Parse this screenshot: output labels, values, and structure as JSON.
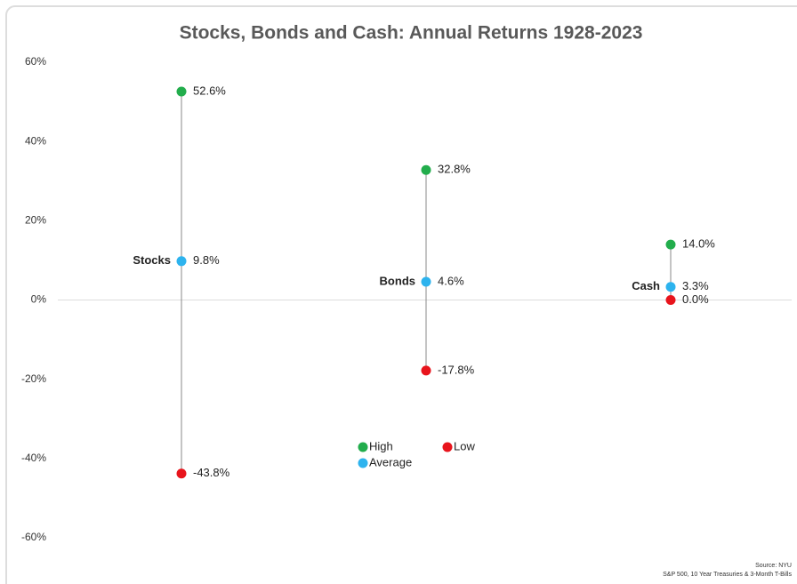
{
  "chart_data": {
    "type": "range-dot",
    "title": "Stocks, Bonds and Cash: Annual Returns 1928-2023",
    "categories": [
      "Stocks",
      "Bonds",
      "Cash"
    ],
    "series": [
      {
        "name": "High",
        "color": "#22ad4c",
        "values": [
          52.6,
          32.8,
          14.0
        ],
        "value_labels": [
          "52.6%",
          "32.8%",
          "14.0%"
        ]
      },
      {
        "name": "Average",
        "color": "#2db3ee",
        "values": [
          9.8,
          4.6,
          3.3
        ],
        "value_labels": [
          "9.8%",
          "4.6%",
          "3.3%"
        ]
      },
      {
        "name": "Low",
        "color": "#e8141c",
        "values": [
          -43.8,
          -17.8,
          0.0
        ],
        "value_labels": [
          "-43.8%",
          "-17.8%",
          "0.0%"
        ]
      }
    ],
    "ylim": [
      -60,
      60
    ],
    "yticks": [
      {
        "value": 60,
        "label": "60%"
      },
      {
        "value": 40,
        "label": "40%"
      },
      {
        "value": 20,
        "label": "20%"
      },
      {
        "value": 0,
        "label": "0%"
      },
      {
        "value": -20,
        "label": "-20%"
      },
      {
        "value": -40,
        "label": "-40%"
      },
      {
        "value": -60,
        "label": "-60%"
      }
    ],
    "source": [
      "Source: NYU",
      "S&P 500, 10 Year Treasuries & 3-Month T-Bills"
    ]
  }
}
